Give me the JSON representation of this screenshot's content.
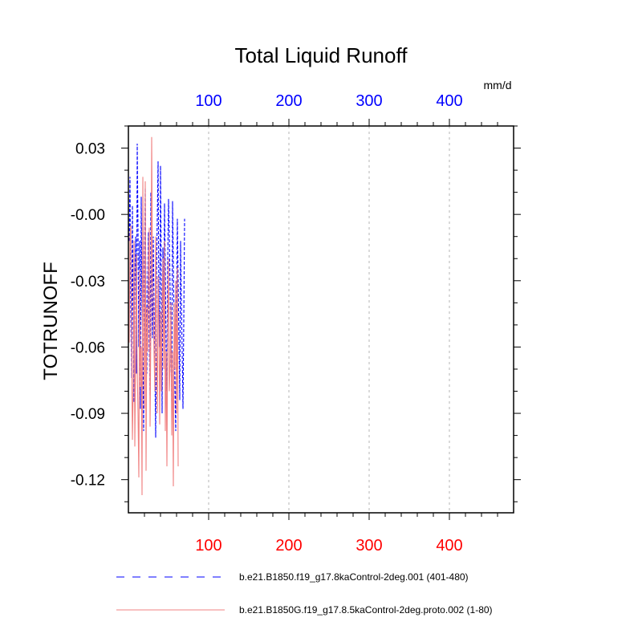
{
  "chart_data": {
    "type": "line",
    "title": "Total Liquid Runoff",
    "units": "mm/d",
    "ylabel": "TOTRUNOFF",
    "xlim": [
      0,
      480
    ],
    "ylim": [
      -0.135,
      0.04
    ],
    "top_axis": {
      "ticks": [
        100,
        200,
        300,
        400
      ],
      "labels": [
        "100",
        "200",
        "300",
        "400"
      ],
      "color": "#0000ff"
    },
    "bottom_axis": {
      "ticks": [
        100,
        200,
        300,
        400
      ],
      "labels": [
        "100",
        "200",
        "300",
        "400"
      ],
      "color": "#ff0000"
    },
    "y_ticks": [
      0.03,
      0.0,
      -0.03,
      -0.06,
      -0.09,
      -0.12
    ],
    "y_tick_labels": [
      "0.03",
      "-0.00",
      "-0.03",
      "-0.06",
      "-0.09",
      "-0.12"
    ],
    "x_grid": true,
    "series": [
      {
        "name": "b.e21.B1850.f19_g17.8kaControl-2deg.001 (401-480)",
        "color": "#0000ff",
        "dash": "dashed",
        "values": [
          -0.012,
          0.017,
          -0.045,
          -0.074,
          0.004,
          -0.052,
          -0.085,
          -0.031,
          -0.01,
          -0.072,
          0.032,
          -0.008,
          -0.06,
          -0.012,
          -0.088,
          0.008,
          -0.04,
          -0.064,
          -0.098,
          -0.02,
          0.012,
          -0.045,
          -0.072,
          -0.03,
          -0.008,
          -0.06,
          -0.082,
          0.01,
          -0.032,
          -0.056,
          -0.01,
          -0.042,
          -0.07,
          -0.101,
          -0.028,
          -0.002,
          0.024,
          -0.04,
          -0.06,
          0.022,
          -0.03,
          -0.09,
          -0.015,
          -0.04,
          0.005,
          -0.025,
          -0.06,
          -0.08,
          -0.02,
          0.007,
          -0.01,
          -0.034,
          -0.06,
          -0.085,
          0.006,
          -0.022,
          -0.05,
          -0.08,
          -0.098,
          -0.04,
          -0.002,
          -0.03,
          -0.058,
          -0.084,
          -0.012,
          -0.04,
          -0.062,
          -0.088,
          -0.048,
          -0.002
        ]
      },
      {
        "name": "b.e21.B1850G.f19_g17.8.5kaControl-2deg.proto.002 (1-80)",
        "color": "#f08080",
        "dash": "solid",
        "values": [
          -0.058,
          -0.01,
          -0.005,
          -0.064,
          -0.102,
          -0.078,
          -0.012,
          -0.105,
          -0.065,
          -0.018,
          -0.07,
          -0.09,
          -0.119,
          -0.025,
          -0.078,
          -0.06,
          -0.127,
          0.017,
          -0.052,
          -0.088,
          0.015,
          -0.116,
          -0.042,
          -0.062,
          -0.02,
          -0.006,
          -0.096,
          -0.052,
          0.035,
          -0.03,
          -0.04,
          -0.064,
          -0.08,
          -0.01,
          -0.062,
          -0.09,
          -0.028,
          -0.05,
          -0.095,
          -0.044,
          -0.08,
          -0.04,
          -0.02,
          -0.07,
          -0.012,
          -0.098,
          -0.062,
          -0.114,
          -0.05,
          -0.02,
          -0.08,
          -0.068,
          -0.04,
          -0.1,
          -0.062,
          -0.123,
          -0.04,
          -0.07,
          -0.03,
          -0.09,
          -0.024,
          -0.114
        ]
      }
    ]
  }
}
